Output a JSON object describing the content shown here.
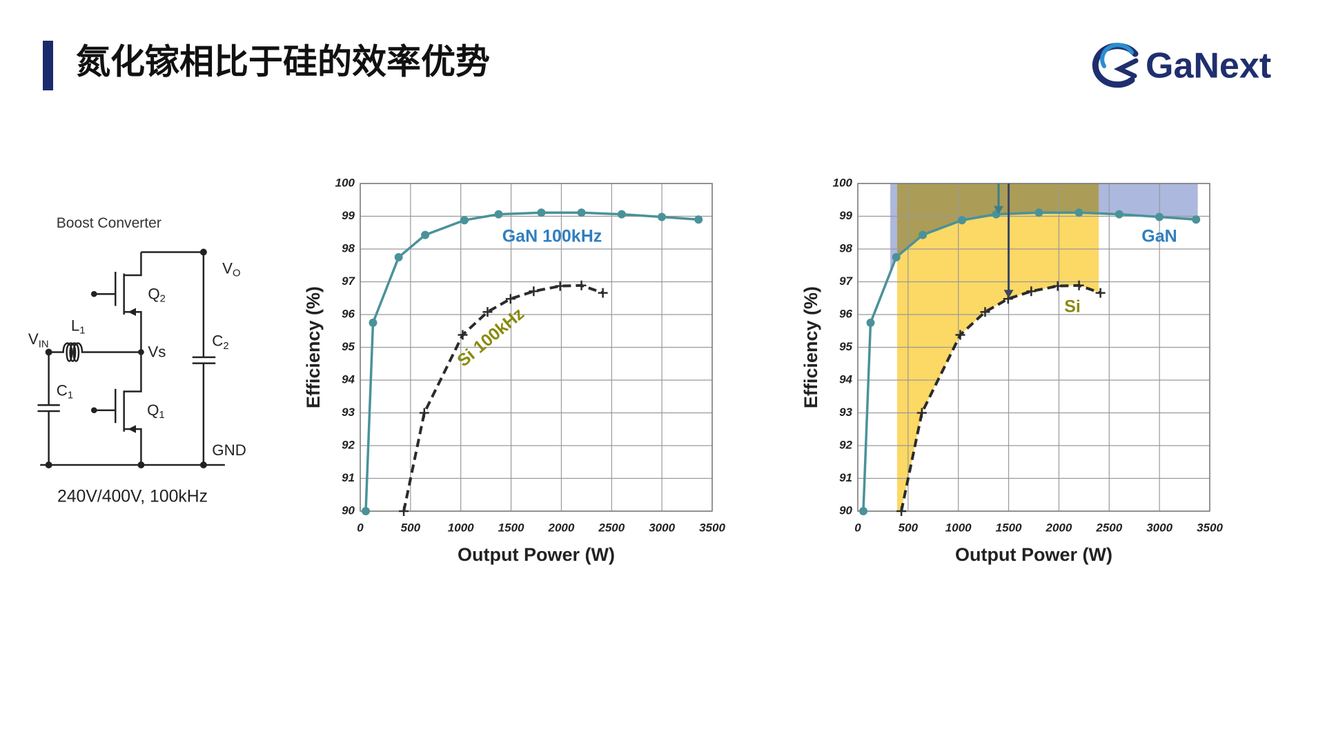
{
  "header": {
    "title": "氮化镓相比于硅的效率优势",
    "logo": "GaNext"
  },
  "circuit": {
    "title": "Boost Converter",
    "caption": "240V/400V, 100kHz",
    "labels": [
      {
        "main": "V",
        "sub": "O"
      },
      {
        "main": "Q",
        "sub": "2"
      },
      {
        "main": "L",
        "sub": "1"
      },
      {
        "main": "V",
        "sub": "IN"
      },
      {
        "main": "Vs"
      },
      {
        "main": "C",
        "sub": "2"
      },
      {
        "main": "C",
        "sub": "1"
      },
      {
        "main": "Q",
        "sub": "1"
      },
      {
        "main": "GND"
      }
    ]
  },
  "chart_data": [
    {
      "type": "line",
      "xlabel": "Output Power (W)",
      "ylabel": "Efficiency (%)",
      "xlim": [
        0,
        3500
      ],
      "ylim": [
        90,
        100
      ],
      "xticks": [
        0,
        500,
        1000,
        1500,
        2000,
        2500,
        3000,
        3500
      ],
      "yticks": [
        90,
        91,
        92,
        93,
        94,
        95,
        96,
        97,
        98,
        99,
        100
      ],
      "grid": true,
      "series": [
        {
          "name": "GaN 100kHz",
          "color": "#4a9299",
          "label_color": "#2f7fc0",
          "dash": false,
          "marker": "circle",
          "x": [
            55,
            127,
            382,
            646,
            1036,
            1376,
            1801,
            2200,
            2600,
            2999,
            3364
          ],
          "values": [
            90,
            95.75,
            97.75,
            98.43,
            98.88,
            99.06,
            99.11,
            99.11,
            99.06,
            98.98,
            98.9
          ]
        },
        {
          "name": "Si 100kHz",
          "color": "#2b2b2b",
          "label_color": "#8a8a10",
          "dash": true,
          "marker": "plus",
          "x": [
            433,
            637,
            1019,
            1266,
            1495,
            1725,
            1988,
            2200,
            2413
          ],
          "values": [
            90,
            93.0,
            95.38,
            96.08,
            96.48,
            96.71,
            96.87,
            96.89,
            96.66
          ]
        }
      ]
    },
    {
      "type": "line",
      "xlabel": "Output Power (W)",
      "ylabel": "Efficiency (%)",
      "xlim": [
        0,
        3500
      ],
      "ylim": [
        90,
        100
      ],
      "xticks": [
        0,
        500,
        1000,
        1500,
        2000,
        2500,
        3000,
        3500
      ],
      "yticks": [
        90,
        91,
        92,
        93,
        94,
        95,
        96,
        97,
        98,
        99,
        100
      ],
      "grid": true,
      "series": [
        {
          "name": "GaN",
          "color": "#4a9299",
          "label_color": "#2f7fc0",
          "dash": false,
          "marker": "circle",
          "x": [
            55,
            127,
            382,
            646,
            1036,
            1376,
            1801,
            2200,
            2600,
            2999,
            3364
          ],
          "values": [
            90,
            95.75,
            97.75,
            98.43,
            98.88,
            99.06,
            99.11,
            99.11,
            99.06,
            98.98,
            98.9
          ]
        },
        {
          "name": "Si",
          "color": "#2b2b2b",
          "label_color": "#8a8a10",
          "dash": true,
          "marker": "plus",
          "x": [
            433,
            637,
            1019,
            1266,
            1495,
            1725,
            1988,
            2200,
            2413
          ],
          "values": [
            90,
            93.0,
            95.38,
            96.08,
            96.48,
            96.71,
            96.87,
            96.89,
            96.66
          ]
        }
      ],
      "shaded": [
        {
          "series": 1,
          "xlim": [
            391,
            2396
          ],
          "color": "#fcd865"
        },
        {
          "series": 0,
          "xlim": [
            323,
            3381
          ],
          "color": "#8a9ad0"
        }
      ],
      "arrows": [
        {
          "x": 1400,
          "from": 100,
          "to": 99.06,
          "color": "#3a7f86"
        },
        {
          "x": 1500,
          "from": 100,
          "to": 96.5,
          "color": "#3a4560"
        }
      ]
    }
  ]
}
